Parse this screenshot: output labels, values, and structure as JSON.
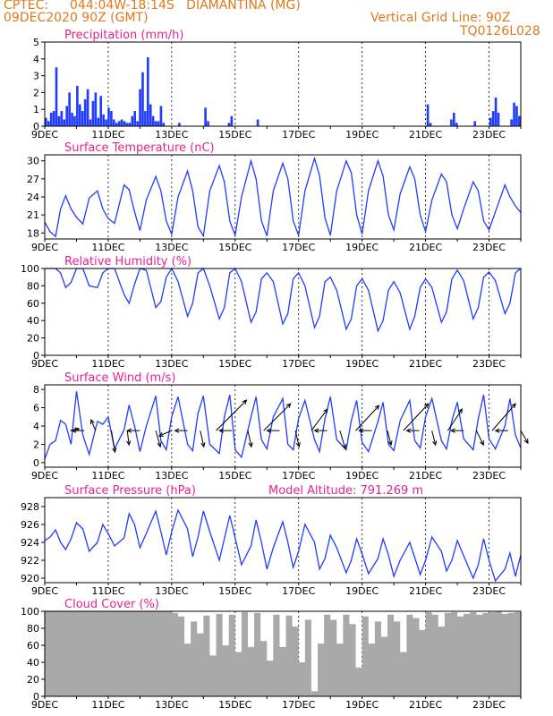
{
  "header": {
    "source": "CPTEC:",
    "location": "044:04W-18:14S   DIAMANTINA (MG)",
    "date": "09DEC2020 90Z (GMT)",
    "grid_note": "Vertical Grid Line: 90Z",
    "model_code": "TQ0126L028"
  },
  "colors": {
    "header": "#e07a1c",
    "title": "#e6228f",
    "series": "#1f3cff",
    "cloud": "#a9a9a9"
  },
  "chart_data": [
    {
      "id": "precip",
      "type": "bar",
      "title": "Precipitation (mm/h)",
      "ylim": [
        0,
        5
      ],
      "yticks": [
        0,
        1,
        2,
        3,
        4,
        5
      ],
      "xlim": [
        0,
        15
      ],
      "xticks": [
        0,
        2,
        4,
        6,
        8,
        10,
        12,
        14
      ],
      "xticklabels": [
        "9DEC",
        "11DEC",
        "13DEC",
        "15DEC",
        "17DEC",
        "19DEC",
        "21DEC",
        "23DEC"
      ],
      "grid": true,
      "units_per_day": "3-hourly",
      "values": [
        0.5,
        0.3,
        0.8,
        0.9,
        3.5,
        0.6,
        0.9,
        0.4,
        1.2,
        2.0,
        0.8,
        0.6,
        2.4,
        1.3,
        0.9,
        1.6,
        2.2,
        0.4,
        1.5,
        2.0,
        0.5,
        1.8,
        0.7,
        0.4,
        1.1,
        0.9,
        0.4,
        0.2,
        0.3,
        0.4,
        0.3,
        0.2,
        0.2,
        0.6,
        0.9,
        0.3,
        2.2,
        3.2,
        0.9,
        4.1,
        1.3,
        0.6,
        0.3,
        0.3,
        1.2,
        0.2,
        0,
        0,
        0,
        0,
        0,
        0.2,
        0,
        0,
        0,
        0,
        0,
        0,
        0,
        0,
        0,
        1.1,
        0.3,
        0,
        0,
        0,
        0,
        0,
        0,
        0,
        0.2,
        0.6,
        0,
        0,
        0,
        0,
        0,
        0,
        0,
        0,
        0,
        0.4,
        0,
        0,
        0,
        0,
        0,
        0,
        0,
        0,
        0,
        0,
        0,
        0,
        0,
        0,
        0,
        0,
        0,
        0,
        0,
        0,
        0,
        0,
        0,
        0,
        0,
        0,
        0,
        0,
        0,
        0,
        0,
        0,
        0,
        0,
        0,
        0,
        0,
        0,
        0,
        0,
        0,
        0,
        0,
        0,
        0,
        0,
        0,
        0,
        0,
        0,
        0,
        0,
        0,
        0,
        0,
        0,
        0,
        0,
        0,
        0,
        0,
        0,
        0,
        0,
        1.3,
        0.2,
        0,
        0,
        0,
        0,
        0,
        0,
        0,
        0.4,
        0.8,
        0.2,
        0,
        0,
        0,
        0,
        0,
        0,
        0.3,
        0,
        0,
        0,
        0,
        0,
        0.5,
        0.9,
        1.7,
        0.8,
        0,
        0,
        0,
        0,
        0.4,
        1.4,
        1.2,
        0.6
      ]
    },
    {
      "id": "temp",
      "type": "line",
      "title": "Surface Temperature (nC)",
      "ylim": [
        17,
        31
      ],
      "yticks": [
        18,
        21,
        24,
        27,
        30
      ],
      "xlim": [
        0,
        15
      ],
      "xticks": [
        0,
        2,
        4,
        6,
        8,
        10,
        12,
        14
      ],
      "xticklabels": [
        "9DEC",
        "11DEC",
        "13DEC",
        "15DEC",
        "17DEC",
        "19DEC",
        "21DEC",
        "23DEC"
      ],
      "grid": true,
      "x": [
        0,
        0.17,
        0.34,
        0.5,
        0.66,
        0.83,
        1.0,
        1.2,
        1.4,
        1.66,
        1.83,
        2.0,
        2.2,
        2.5,
        2.66,
        2.83,
        3.0,
        3.2,
        3.5,
        3.66,
        3.83,
        4.0,
        4.2,
        4.5,
        4.66,
        4.83,
        5.0,
        5.2,
        5.5,
        5.66,
        5.83,
        6.0,
        6.2,
        6.5,
        6.66,
        6.83,
        7.0,
        7.2,
        7.5,
        7.66,
        7.83,
        8.0,
        8.2,
        8.5,
        8.66,
        8.83,
        9.0,
        9.2,
        9.5,
        9.66,
        9.83,
        10.0,
        10.2,
        10.5,
        10.66,
        10.83,
        11.0,
        11.2,
        11.5,
        11.66,
        11.83,
        12.0,
        12.2,
        12.5,
        12.66,
        12.83,
        13.0,
        13.2,
        13.5,
        13.66,
        13.83,
        14.0,
        14.2,
        14.5,
        14.66,
        14.83,
        15.0
      ],
      "values": [
        19.8,
        18.2,
        17.4,
        22.0,
        24.2,
        22.0,
        20.6,
        19.5,
        23.8,
        25.0,
        22.0,
        20.4,
        19.6,
        26.0,
        25.2,
        21.5,
        18.4,
        23.5,
        27.4,
        25.0,
        20.0,
        17.8,
        24.0,
        28.3,
        25.0,
        19.0,
        17.5,
        25.0,
        29.2,
        26.5,
        20.0,
        17.6,
        24.0,
        30.0,
        27.0,
        20.0,
        17.5,
        25.0,
        29.6,
        27.0,
        20.0,
        17.6,
        25.0,
        30.4,
        27.5,
        20.5,
        17.6,
        25.0,
        30.0,
        28.0,
        21.0,
        17.8,
        25.0,
        30.0,
        27.5,
        21.0,
        18.5,
        24.5,
        29.0,
        27.0,
        21.0,
        18.2,
        23.5,
        27.8,
        26.5,
        21.0,
        18.7,
        22.0,
        26.5,
        25.0,
        20.0,
        18.5,
        21.5,
        26.0,
        24.0,
        22.5,
        21.4
      ]
    },
    {
      "id": "rh",
      "type": "line",
      "title": "Relative Humidity (%)",
      "ylim": [
        0,
        100
      ],
      "yticks": [
        0,
        20,
        40,
        60,
        80,
        100
      ],
      "xlim": [
        0,
        15
      ],
      "xticks": [
        0,
        2,
        4,
        6,
        8,
        10,
        12,
        14
      ],
      "xticklabels": [
        "9DEC",
        "11DEC",
        "13DEC",
        "15DEC",
        "17DEC",
        "19DEC",
        "21DEC",
        "23DEC"
      ],
      "grid": true,
      "x": [
        0,
        0.17,
        0.34,
        0.5,
        0.66,
        0.83,
        1.0,
        1.2,
        1.4,
        1.66,
        1.83,
        2.0,
        2.2,
        2.5,
        2.66,
        2.83,
        3.0,
        3.2,
        3.5,
        3.66,
        3.83,
        4.0,
        4.2,
        4.5,
        4.66,
        4.83,
        5.0,
        5.2,
        5.5,
        5.66,
        5.83,
        6.0,
        6.2,
        6.5,
        6.66,
        6.83,
        7.0,
        7.2,
        7.5,
        7.66,
        7.83,
        8.0,
        8.2,
        8.5,
        8.66,
        8.83,
        9.0,
        9.2,
        9.5,
        9.66,
        9.83,
        10.0,
        10.2,
        10.5,
        10.66,
        10.83,
        11.0,
        11.2,
        11.5,
        11.66,
        11.83,
        12.0,
        12.2,
        12.5,
        12.66,
        12.83,
        13.0,
        13.2,
        13.5,
        13.66,
        13.83,
        14.0,
        14.2,
        14.5,
        14.66,
        14.83,
        15.0
      ],
      "values": [
        100,
        100,
        100,
        95,
        78,
        84,
        100,
        100,
        80,
        78,
        95,
        100,
        100,
        70,
        60,
        82,
        100,
        98,
        55,
        62,
        90,
        100,
        85,
        45,
        60,
        95,
        100,
        80,
        42,
        55,
        95,
        100,
        85,
        38,
        50,
        88,
        95,
        85,
        36,
        48,
        88,
        95,
        80,
        32,
        45,
        85,
        90,
        75,
        30,
        42,
        80,
        88,
        75,
        28,
        40,
        75,
        85,
        72,
        30,
        45,
        78,
        88,
        78,
        38,
        50,
        88,
        98,
        86,
        42,
        55,
        90,
        96,
        86,
        48,
        60,
        95,
        100
      ]
    },
    {
      "id": "wind",
      "type": "line",
      "title": "Surface Wind (m/s)",
      "ylim": [
        -0.5,
        8.5
      ],
      "yticks": [
        0,
        2,
        4,
        6,
        8
      ],
      "xlim": [
        0,
        15
      ],
      "xticks": [
        0,
        2,
        4,
        6,
        8,
        10,
        12,
        14
      ],
      "xticklabels": [
        "9DEC",
        "11DEC",
        "13DEC",
        "15DEC",
        "17DEC",
        "19DEC",
        "21DEC",
        "23DEC"
      ],
      "grid": true,
      "x": [
        0,
        0.17,
        0.34,
        0.5,
        0.66,
        0.83,
        1.0,
        1.2,
        1.4,
        1.66,
        1.83,
        2.0,
        2.2,
        2.5,
        2.66,
        2.83,
        3.0,
        3.2,
        3.5,
        3.66,
        3.83,
        4.0,
        4.2,
        4.5,
        4.66,
        4.83,
        5.0,
        5.2,
        5.5,
        5.66,
        5.83,
        6.0,
        6.2,
        6.5,
        6.66,
        6.83,
        7.0,
        7.2,
        7.5,
        7.66,
        7.83,
        8.0,
        8.2,
        8.5,
        8.66,
        8.83,
        9.0,
        9.2,
        9.5,
        9.66,
        9.83,
        10.0,
        10.2,
        10.5,
        10.66,
        10.83,
        11.0,
        11.2,
        11.5,
        11.66,
        11.83,
        12.0,
        12.2,
        12.5,
        12.66,
        12.83,
        13.0,
        13.2,
        13.5,
        13.66,
        13.83,
        14.0,
        14.2,
        14.5,
        14.66,
        14.83,
        15.0
      ],
      "values": [
        0.4,
        2.0,
        2.4,
        4.6,
        4.2,
        2.0,
        7.8,
        3.0,
        0.9,
        4.5,
        4.2,
        5.0,
        1.5,
        3.6,
        6.3,
        4.0,
        1.2,
        4.0,
        7.3,
        2.4,
        1.4,
        5.0,
        7.2,
        2.0,
        1.3,
        5.4,
        7.3,
        2.0,
        1.0,
        5.0,
        7.4,
        1.4,
        0.6,
        5.0,
        7.2,
        2.5,
        1.5,
        5.0,
        7.0,
        2.0,
        1.4,
        4.8,
        6.8,
        2.5,
        1.2,
        4.8,
        7.2,
        2.5,
        1.4,
        4.6,
        6.8,
        2.2,
        1.2,
        4.5,
        6.6,
        2.0,
        1.3,
        4.6,
        6.8,
        2.4,
        1.6,
        5.0,
        7.0,
        2.4,
        1.5,
        4.6,
        6.6,
        2.6,
        1.4,
        4.8,
        7.4,
        2.6,
        1.5,
        4.0,
        7.0,
        3.0,
        1.6
      ],
      "arrows": [
        {
          "x": 0.8,
          "dx": 10,
          "dy": -2
        },
        {
          "x": 1.25,
          "dx": -14,
          "dy": 0
        },
        {
          "x": 1.6,
          "dx": -5,
          "dy": -12
        },
        {
          "x": 2.1,
          "dx": 4,
          "dy": 24
        },
        {
          "x": 2.6,
          "dx": 2,
          "dy": 16
        },
        {
          "x": 3.0,
          "dx": -14,
          "dy": 0
        },
        {
          "x": 3.5,
          "dx": 5,
          "dy": 18
        },
        {
          "x": 4.0,
          "dx": -14,
          "dy": 6
        },
        {
          "x": 4.5,
          "dx": -14,
          "dy": 0
        },
        {
          "x": 4.9,
          "dx": 4,
          "dy": 18
        },
        {
          "x": 5.4,
          "dx": 34,
          "dy": -34
        },
        {
          "x": 5.9,
          "dx": -14,
          "dy": 0
        },
        {
          "x": 6.4,
          "dx": 4,
          "dy": 18
        },
        {
          "x": 6.9,
          "dx": 30,
          "dy": -30
        },
        {
          "x": 7.4,
          "dx": -14,
          "dy": 0
        },
        {
          "x": 7.9,
          "dx": 4,
          "dy": 18
        },
        {
          "x": 8.4,
          "dx": 18,
          "dy": -24
        },
        {
          "x": 8.9,
          "dx": -14,
          "dy": 0
        },
        {
          "x": 9.3,
          "dx": 6,
          "dy": 20
        },
        {
          "x": 9.8,
          "dx": 26,
          "dy": -28
        },
        {
          "x": 10.3,
          "dx": -14,
          "dy": 0
        },
        {
          "x": 10.8,
          "dx": 4,
          "dy": 16
        },
        {
          "x": 11.3,
          "dx": 28,
          "dy": -30
        },
        {
          "x": 11.8,
          "dx": -14,
          "dy": 0
        },
        {
          "x": 12.2,
          "dx": 4,
          "dy": 16
        },
        {
          "x": 12.7,
          "dx": 16,
          "dy": -24
        },
        {
          "x": 13.2,
          "dx": -14,
          "dy": 0
        },
        {
          "x": 13.6,
          "dx": 8,
          "dy": 16
        },
        {
          "x": 14.1,
          "dx": 26,
          "dy": -30
        },
        {
          "x": 14.6,
          "dx": -14,
          "dy": 0
        },
        {
          "x": 15.0,
          "dx": 8,
          "dy": 14
        }
      ]
    },
    {
      "id": "pressure",
      "type": "line",
      "title": "Surface Pressure (hPa)",
      "subtitle": "Model Altitude: 791.269 m",
      "ylim": [
        919.5,
        929
      ],
      "yticks": [
        920,
        922,
        924,
        926,
        928
      ],
      "xlim": [
        0,
        15
      ],
      "xticks": [
        0,
        2,
        4,
        6,
        8,
        10,
        12,
        14
      ],
      "xticklabels": [
        "9DEC",
        "11DEC",
        "13DEC",
        "15DEC",
        "17DEC",
        "19DEC",
        "21DEC",
        "23DEC"
      ],
      "grid": true,
      "x": [
        0,
        0.17,
        0.34,
        0.5,
        0.66,
        0.83,
        1.0,
        1.2,
        1.4,
        1.66,
        1.83,
        2.0,
        2.2,
        2.5,
        2.66,
        2.83,
        3.0,
        3.2,
        3.5,
        3.66,
        3.83,
        4.0,
        4.2,
        4.5,
        4.66,
        4.83,
        5.0,
        5.2,
        5.5,
        5.66,
        5.83,
        6.0,
        6.2,
        6.5,
        6.66,
        6.83,
        7.0,
        7.2,
        7.5,
        7.66,
        7.83,
        8.0,
        8.2,
        8.5,
        8.66,
        8.83,
        9.0,
        9.2,
        9.5,
        9.66,
        9.83,
        10.0,
        10.2,
        10.5,
        10.66,
        10.83,
        11.0,
        11.2,
        11.5,
        11.66,
        11.83,
        12.0,
        12.2,
        12.5,
        12.66,
        12.83,
        13.0,
        13.2,
        13.5,
        13.66,
        13.83,
        14.0,
        14.2,
        14.5,
        14.66,
        14.83,
        15.0
      ],
      "values": [
        924.2,
        924.6,
        925.4,
        924.0,
        923.2,
        924.4,
        926.2,
        925.5,
        923.0,
        924.0,
        926.0,
        925.0,
        923.6,
        924.5,
        927.2,
        926.0,
        923.4,
        925.0,
        927.5,
        925.2,
        922.6,
        925.2,
        927.6,
        925.5,
        922.4,
        924.6,
        927.5,
        925.2,
        922.0,
        924.4,
        927.0,
        924.5,
        921.5,
        923.6,
        926.5,
        924.0,
        921.0,
        923.4,
        926.3,
        924.0,
        921.2,
        923.0,
        926.0,
        924.0,
        921.0,
        922.2,
        924.8,
        923.4,
        920.6,
        922.0,
        924.4,
        922.7,
        920.5,
        922.2,
        924.4,
        922.6,
        920.2,
        922.0,
        924.0,
        922.3,
        920.4,
        922.0,
        924.6,
        923.0,
        920.8,
        922.0,
        924.2,
        922.5,
        920.0,
        921.5,
        924.4,
        922.0,
        919.7,
        921.0,
        922.8,
        920.2,
        922.6
      ]
    },
    {
      "id": "cloud",
      "type": "bar",
      "title": "Cloud Cover (%)",
      "ylim": [
        0,
        100
      ],
      "yticks": [
        0,
        20,
        40,
        60,
        80,
        100
      ],
      "xlim": [
        0,
        15
      ],
      "xticks": [
        0,
        2,
        4,
        6,
        8,
        10,
        12,
        14
      ],
      "xticklabels": [
        "9DEC",
        "11DEC",
        "13DEC",
        "15DEC",
        "17DEC",
        "19DEC",
        "21DEC",
        "23DEC"
      ],
      "grid": true,
      "x": [
        0,
        0.5,
        1,
        1.5,
        2,
        2.5,
        3,
        3.5,
        4,
        4.2,
        4.4,
        4.6,
        4.8,
        5,
        5.2,
        5.4,
        5.6,
        5.8,
        6,
        6.2,
        6.4,
        6.6,
        6.8,
        7,
        7.2,
        7.4,
        7.6,
        7.8,
        8,
        8.2,
        8.4,
        8.6,
        8.8,
        9,
        9.2,
        9.4,
        9.6,
        9.8,
        10,
        10.2,
        10.4,
        10.6,
        10.8,
        11,
        11.2,
        11.4,
        11.6,
        11.8,
        12,
        12.2,
        12.4,
        12.6,
        12.8,
        13,
        13.2,
        13.4,
        13.6,
        13.8,
        14,
        14.2,
        14.4,
        14.6,
        14.8,
        15
      ],
      "values": [
        100,
        100,
        100,
        100,
        100,
        100,
        100,
        100,
        98,
        94,
        62,
        88,
        74,
        95,
        48,
        97,
        60,
        96,
        52,
        99,
        58,
        98,
        65,
        42,
        96,
        58,
        95,
        82,
        40,
        90,
        6,
        62,
        96,
        90,
        62,
        96,
        85,
        34,
        94,
        62,
        88,
        70,
        96,
        88,
        52,
        96,
        92,
        78,
        99,
        96,
        82,
        98,
        99,
        94,
        97,
        99,
        96,
        98,
        99,
        100,
        97,
        98,
        99,
        98
      ]
    }
  ]
}
